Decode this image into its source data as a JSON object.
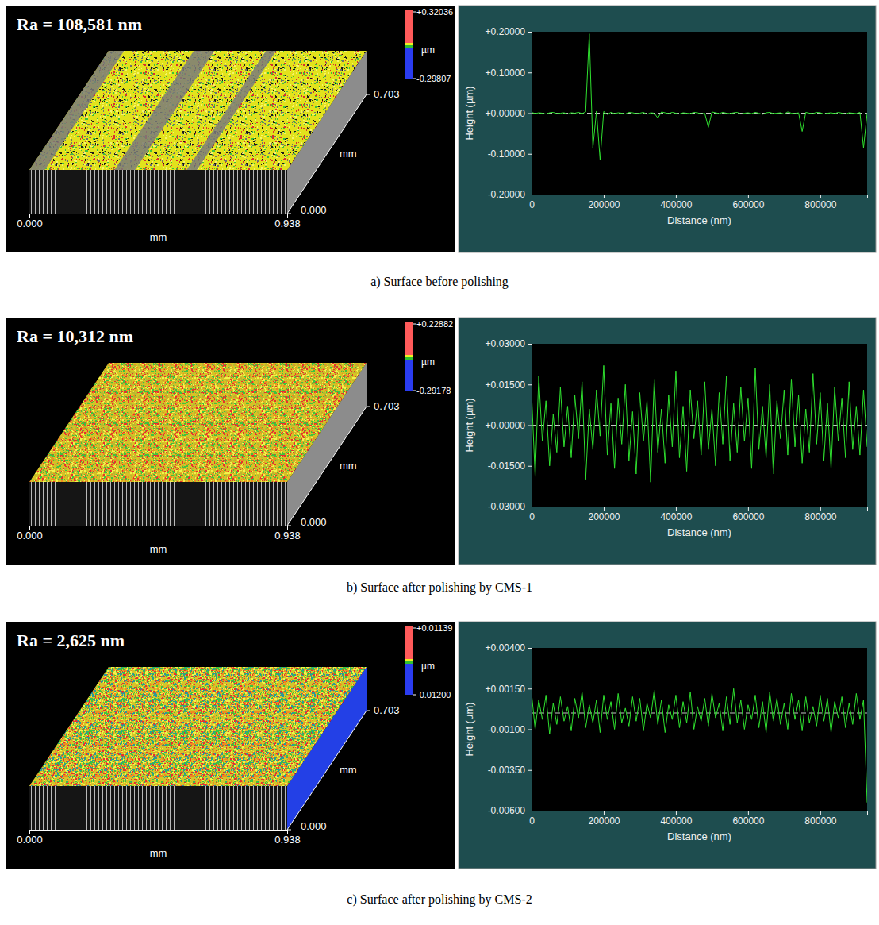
{
  "chart_data": [
    {
      "type": "line",
      "x_label": "Distance (nm)",
      "y_label": "Height (µm)",
      "color": "#2fe02f",
      "baseline": 0,
      "xlim": [
        0,
        930000
      ],
      "ylim": [
        -0.2,
        0.2
      ],
      "xticks": [
        0,
        200000,
        400000,
        600000,
        800000
      ],
      "yticks": [
        {
          "value": -0.2,
          "label": "-0.20000"
        },
        {
          "value": -0.1,
          "label": "-0.10000"
        },
        {
          "value": 0,
          "label": "+0.00000"
        },
        {
          "value": 0.1,
          "label": "+0.10000"
        },
        {
          "value": 0.2,
          "label": "+0.20000"
        }
      ],
      "x": [
        0,
        10000,
        20000,
        30000,
        40000,
        50000,
        60000,
        70000,
        80000,
        90000,
        100000,
        110000,
        120000,
        130000,
        140000,
        150000,
        160000,
        170000,
        180000,
        190000,
        200000,
        210000,
        220000,
        230000,
        240000,
        250000,
        260000,
        270000,
        280000,
        290000,
        300000,
        310000,
        320000,
        330000,
        340000,
        350000,
        360000,
        370000,
        380000,
        390000,
        400000,
        410000,
        420000,
        430000,
        440000,
        450000,
        460000,
        470000,
        480000,
        490000,
        500000,
        510000,
        520000,
        530000,
        540000,
        550000,
        560000,
        570000,
        580000,
        590000,
        600000,
        610000,
        620000,
        630000,
        640000,
        650000,
        660000,
        670000,
        680000,
        690000,
        700000,
        710000,
        720000,
        730000,
        740000,
        750000,
        760000,
        770000,
        780000,
        790000,
        800000,
        810000,
        820000,
        830000,
        840000,
        850000,
        860000,
        870000,
        880000,
        890000,
        900000,
        910000,
        920000,
        930000
      ],
      "values": [
        0.002,
        -0.001,
        0.001,
        0,
        -0.002,
        0.001,
        0.002,
        -0.001,
        0,
        0.001,
        -0.002,
        0.001,
        0,
        0.002,
        -0.001,
        0.003,
        0.195,
        -0.085,
        0.005,
        -0.115,
        0.004,
        -0.003,
        0.002,
        -0.001,
        0.001,
        0,
        -0.002,
        0.002,
        0.001,
        -0.001,
        0,
        0.002,
        -0.003,
        0.001,
        0,
        -0.012,
        0.003,
        0.001,
        -0.001,
        0.002,
        0,
        -0.002,
        0.001,
        0,
        -0.001,
        0.002,
        0.001,
        -0.002,
        0,
        -0.035,
        0.003,
        0.001,
        -0.001,
        0.002,
        0,
        -0.001,
        0.001,
        0.002,
        -0.002,
        0,
        0.001,
        -0.001,
        0.002,
        0,
        -0.003,
        0.001,
        0.002,
        -0.001,
        0,
        0.001,
        -0.002,
        0.003,
        0,
        -0.001,
        0.001,
        -0.045,
        0.002,
        0,
        -0.001,
        0.002,
        0.001,
        -0.002,
        0,
        0.001,
        -0.001,
        0.002,
        0,
        -0.002,
        0.001,
        0,
        -0.001,
        0.002,
        -0.085,
        0
      ]
    },
    {
      "type": "line",
      "x_label": "Distance (nm)",
      "y_label": "Height (µm)",
      "color": "#2fe02f",
      "baseline": 0,
      "xlim": [
        0,
        930000
      ],
      "ylim": [
        -0.03,
        0.03
      ],
      "xticks": [
        0,
        200000,
        400000,
        600000,
        800000
      ],
      "yticks": [
        {
          "value": -0.03,
          "label": "-0.03000"
        },
        {
          "value": -0.015,
          "label": "-0.01500"
        },
        {
          "value": 0,
          "label": "+0.00000"
        },
        {
          "value": 0.015,
          "label": "+0.01500"
        },
        {
          "value": 0.03,
          "label": "+0.03000"
        }
      ],
      "x": [
        0,
        10000,
        20000,
        30000,
        40000,
        50000,
        60000,
        70000,
        80000,
        90000,
        100000,
        110000,
        120000,
        130000,
        140000,
        150000,
        160000,
        170000,
        180000,
        190000,
        200000,
        210000,
        220000,
        230000,
        240000,
        250000,
        260000,
        270000,
        280000,
        290000,
        300000,
        310000,
        320000,
        330000,
        340000,
        350000,
        360000,
        370000,
        380000,
        390000,
        400000,
        410000,
        420000,
        430000,
        440000,
        450000,
        460000,
        470000,
        480000,
        490000,
        500000,
        510000,
        520000,
        530000,
        540000,
        550000,
        560000,
        570000,
        580000,
        590000,
        600000,
        610000,
        620000,
        630000,
        640000,
        650000,
        660000,
        670000,
        680000,
        690000,
        700000,
        710000,
        720000,
        730000,
        740000,
        750000,
        760000,
        770000,
        780000,
        790000,
        800000,
        810000,
        820000,
        830000,
        840000,
        850000,
        860000,
        870000,
        880000,
        890000,
        900000,
        910000,
        920000,
        930000
      ],
      "values": [
        0.012,
        -0.019,
        0.018,
        -0.006,
        0.009,
        -0.015,
        0.004,
        -0.01,
        0.014,
        -0.008,
        0.007,
        -0.012,
        0.011,
        -0.005,
        0.016,
        -0.02,
        0.006,
        -0.009,
        0.013,
        -0.004,
        0.022,
        -0.011,
        0.008,
        -0.016,
        0.01,
        -0.007,
        0.015,
        -0.013,
        0.005,
        -0.018,
        0.012,
        -0.006,
        0.009,
        -0.021,
        0.017,
        -0.01,
        0.006,
        -0.014,
        0.011,
        -0.008,
        0.02,
        -0.012,
        0.007,
        -0.017,
        0.013,
        -0.005,
        0.009,
        -0.011,
        0.016,
        -0.009,
        0.006,
        -0.015,
        0.012,
        -0.007,
        0.018,
        -0.013,
        0.008,
        -0.01,
        0.014,
        -0.006,
        0.01,
        -0.016,
        0.021,
        -0.009,
        0.007,
        -0.012,
        0.015,
        -0.018,
        0.009,
        -0.005,
        0.013,
        -0.011,
        0.017,
        -0.008,
        0.011,
        -0.014,
        0.006,
        -0.01,
        0.019,
        -0.007,
        0.012,
        -0.013,
        0.008,
        -0.016,
        0.014,
        -0.006,
        0.01,
        -0.012,
        0.016,
        -0.009,
        0.007,
        -0.011,
        0.013,
        -0.008
      ]
    },
    {
      "type": "line",
      "x_label": "Distance (nm)",
      "y_label": "Height (µm)",
      "color": "#2fe02f",
      "baseline": 0,
      "xlim": [
        0,
        930000
      ],
      "ylim": [
        -0.006,
        0.004
      ],
      "xticks": [
        0,
        200000,
        400000,
        600000,
        800000
      ],
      "yticks": [
        {
          "value": -0.006,
          "label": "-0.00600"
        },
        {
          "value": -0.0035,
          "label": "-0.00350"
        },
        {
          "value": -0.001,
          "label": "-0.00100"
        },
        {
          "value": 0.0015,
          "label": "+0.00150"
        },
        {
          "value": 0.004,
          "label": "+0.00400"
        }
      ],
      "x": [
        0,
        10000,
        20000,
        30000,
        40000,
        50000,
        60000,
        70000,
        80000,
        90000,
        100000,
        110000,
        120000,
        130000,
        140000,
        150000,
        160000,
        170000,
        180000,
        190000,
        200000,
        210000,
        220000,
        230000,
        240000,
        250000,
        260000,
        270000,
        280000,
        290000,
        300000,
        310000,
        320000,
        330000,
        340000,
        350000,
        360000,
        370000,
        380000,
        390000,
        400000,
        410000,
        420000,
        430000,
        440000,
        450000,
        460000,
        470000,
        480000,
        490000,
        500000,
        510000,
        520000,
        530000,
        540000,
        550000,
        560000,
        570000,
        580000,
        590000,
        600000,
        610000,
        620000,
        630000,
        640000,
        650000,
        660000,
        670000,
        680000,
        690000,
        700000,
        710000,
        720000,
        730000,
        740000,
        750000,
        760000,
        770000,
        780000,
        790000,
        800000,
        810000,
        820000,
        830000,
        840000,
        850000,
        860000,
        870000,
        880000,
        890000,
        900000,
        910000,
        920000,
        930000
      ],
      "values": [
        0.0012,
        -0.001,
        0.0008,
        -0.0004,
        0.0011,
        -0.0013,
        0.0006,
        -0.0007,
        0.001,
        -0.0005,
        0.0004,
        -0.0011,
        0.0009,
        -0.0003,
        0.0013,
        -0.0009,
        0.0005,
        -0.0006,
        0.0008,
        -0.0012,
        0.0011,
        -0.0004,
        0.0007,
        -0.001,
        0.0012,
        -0.0006,
        0.0003,
        -0.0008,
        0.001,
        -0.0005,
        0.0009,
        -0.0011,
        0.0006,
        -0.0003,
        0.0014,
        -0.0007,
        0.0008,
        -0.0012,
        0.0005,
        -0.0004,
        0.0011,
        -0.0009,
        0.0007,
        -0.0006,
        0.0013,
        -0.001,
        0.0004,
        -0.0005,
        0.0009,
        -0.0008,
        0.0012,
        -0.0003,
        0.0006,
        -0.0011,
        0.001,
        -0.0007,
        0.0015,
        -0.0006,
        0.0008,
        -0.001,
        0.0005,
        -0.0004,
        0.0011,
        -0.0009,
        0.0007,
        -0.0012,
        0.0013,
        -0.0005,
        0.0009,
        -0.0007,
        0.0006,
        -0.001,
        0.0012,
        -0.0004,
        0.0008,
        -0.0011,
        0.001,
        -0.0006,
        0.0004,
        -0.0008,
        0.0011,
        -0.0005,
        0.0009,
        -0.0012,
        0.0007,
        -0.0003,
        0.001,
        -0.0009,
        0.0006,
        -0.0007,
        0.0012,
        -0.0004,
        0.0008,
        -0.0055
      ]
    }
  ],
  "surfaces": [
    {
      "ra_label": "Ra = 108,581 nm",
      "colorbar_ticks": [
        {
          "value": -0.29807,
          "label": "-0.29807"
        },
        {
          "value": 0.32036,
          "label": "+0.32036"
        }
      ],
      "colorbar_unit": "µm",
      "xlim": [
        0,
        0.938
      ],
      "xticks": [
        {
          "value": 0,
          "label": "0.000"
        },
        0.938
      ],
      "x_label": "mm",
      "ylim": [
        0,
        0.703
      ],
      "yticks": [
        {
          "value": 0,
          "label": "0.000"
        },
        0.703
      ],
      "y_label": "mm"
    },
    {
      "ra_label": "Ra = 10,312 nm",
      "colorbar_ticks": [
        {
          "value": -0.29178,
          "label": "-0.29178"
        },
        {
          "value": 0.22882,
          "label": "+0.22882"
        }
      ],
      "colorbar_unit": "µm",
      "xlim": [
        0,
        0.938
      ],
      "xticks": [
        {
          "value": 0,
          "label": "0.000"
        },
        0.938
      ],
      "x_label": "mm",
      "ylim": [
        0,
        0.703
      ],
      "yticks": [
        {
          "value": 0,
          "label": "0.000"
        },
        0.703
      ],
      "y_label": "mm"
    },
    {
      "ra_label": "Ra = 2,625 nm",
      "colorbar_ticks": [
        {
          "value": -0.012,
          "label": "-0.01200"
        },
        {
          "value": 0.01139,
          "label": "+0.01139"
        }
      ],
      "colorbar_unit": "µm",
      "xlim": [
        0,
        0.938
      ],
      "xticks": [
        {
          "value": 0,
          "label": "0.000"
        },
        0.938
      ],
      "x_label": "mm",
      "ylim": [
        0,
        0.703
      ],
      "yticks": [
        {
          "value": 0,
          "label": "0.000"
        },
        0.703
      ],
      "y_label": "mm"
    }
  ],
  "captions": [
    "a) Surface before polishing",
    "b) Surface after polishing by CMS-1",
    "c) Surface after polishing by CMS-2"
  ]
}
